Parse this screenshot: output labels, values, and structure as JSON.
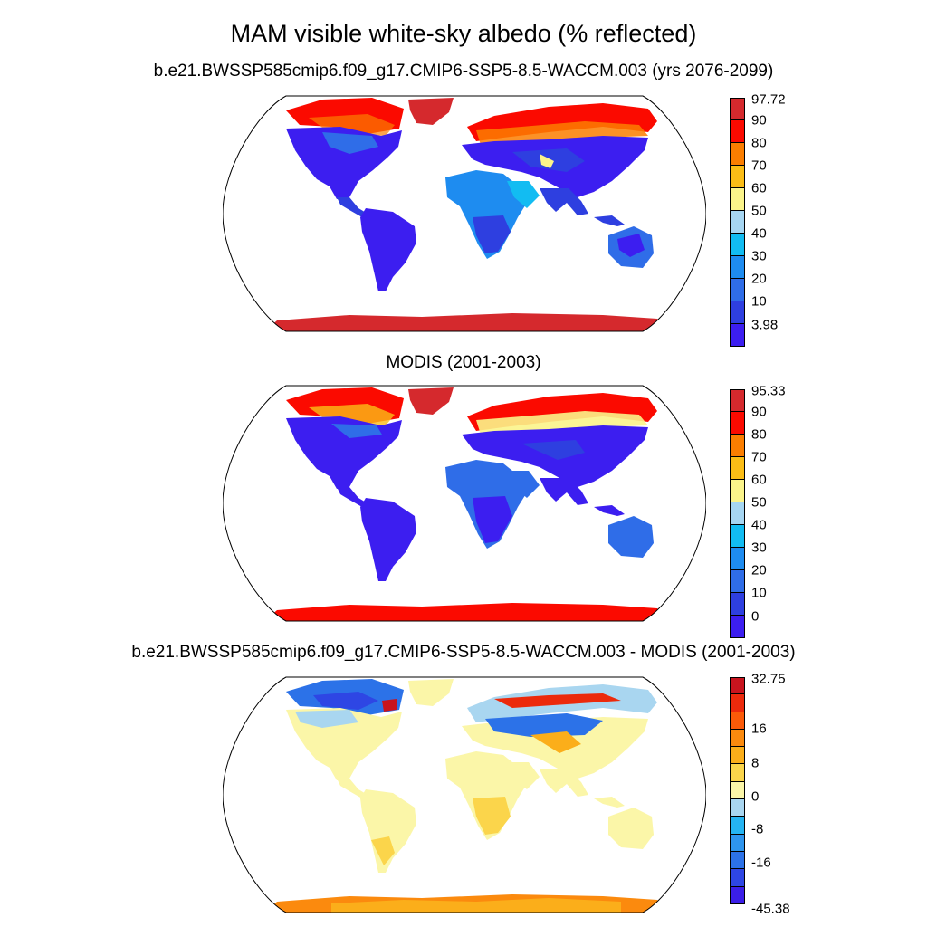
{
  "title": "MAM visible white-sky albedo (% reflected)",
  "colors": {
    "abs_scale": [
      "#3c1ef0",
      "#2e3fe0",
      "#2f6de8",
      "#1e8cf0",
      "#12bcf2",
      "#a6d6f2",
      "#fbf48a",
      "#fbbd16",
      "#fb7e00",
      "#fb0a00",
      "#d5292d"
    ],
    "diff_scale": [
      "#3b1ee8",
      "#2e46e4",
      "#2c72e8",
      "#2e95ee",
      "#25b4f2",
      "#a9d6f0",
      "#fbf6a8",
      "#fbd54b",
      "#fbae1a",
      "#fb8a0e",
      "#fb5a08",
      "#ec2a0c",
      "#c8141e"
    ]
  },
  "panels": [
    {
      "title": "b.e21.BWSSP585cmip6.f09_g17.CMIP6-SSP5-8.5-WACCM.003 (yrs 2076-2099)",
      "colorbar_labels": [
        "97.72",
        "90",
        "80",
        "70",
        "60",
        "50",
        "40",
        "30",
        "20",
        "10",
        "3.98"
      ]
    },
    {
      "title": "MODIS (2001-2003)",
      "colorbar_labels": [
        "95.33",
        "90",
        "80",
        "70",
        "60",
        "50",
        "40",
        "30",
        "20",
        "10",
        "0"
      ]
    },
    {
      "title": "b.e21.BWSSP585cmip6.f09_g17.CMIP6-SSP5-8.5-WACCM.003 - MODIS (2001-2003)",
      "colorbar_labels": [
        "32.75",
        "16",
        "8",
        "0",
        "-8",
        "-16",
        "-45.38"
      ]
    }
  ]
}
